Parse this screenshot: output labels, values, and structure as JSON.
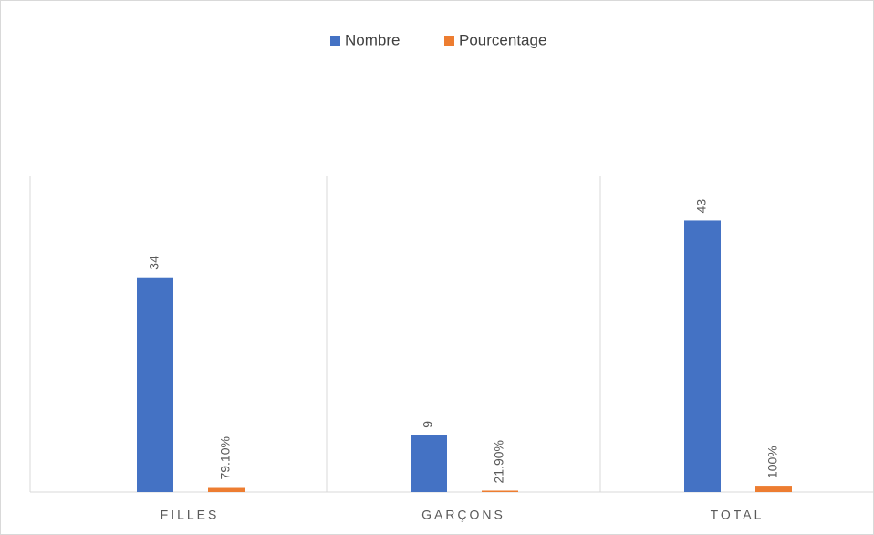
{
  "chart_data": {
    "type": "bar",
    "categories": [
      "FILLES",
      "GARÇONS",
      "TOTAL"
    ],
    "series": [
      {
        "name": "Nombre",
        "color": "#4472c4",
        "values": [
          34,
          9,
          43
        ]
      },
      {
        "name": "Pourcentage",
        "color": "#ed7d31",
        "values": [
          0.791,
          0.219,
          1
        ],
        "value_labels": [
          "79.10%",
          "21.90%",
          "100%"
        ]
      }
    ],
    "ylim": [
      0,
      50
    ],
    "legend": "top"
  }
}
